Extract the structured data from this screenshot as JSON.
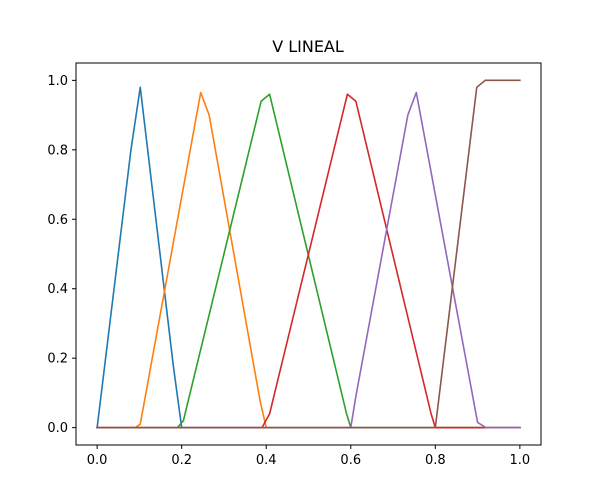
{
  "chart_data": {
    "type": "line",
    "title": "V LINEAL",
    "xlabel": "",
    "ylabel": "",
    "xlim": [
      -0.05,
      1.05
    ],
    "ylim": [
      -0.05,
      1.05
    ],
    "xticks": [
      0.0,
      0.2,
      0.4,
      0.6,
      0.8,
      1.0
    ],
    "xtick_labels": [
      "0.0",
      "0.2",
      "0.4",
      "0.6",
      "0.8",
      "1.0"
    ],
    "yticks": [
      0.0,
      0.2,
      0.4,
      0.6,
      0.8,
      1.0
    ],
    "ytick_labels": [
      "0.0",
      "0.2",
      "0.4",
      "0.6",
      "0.8",
      "1.0"
    ],
    "grid": false,
    "legend": false,
    "series": [
      {
        "color": "#1f77b4",
        "x": [
          0.0,
          0.08,
          0.102,
          0.18,
          0.2,
          1.0
        ],
        "y": [
          0.0,
          0.8,
          0.98,
          0.18,
          0.0,
          0.0
        ]
      },
      {
        "color": "#ff7f0e",
        "x": [
          0.0,
          0.09,
          0.102,
          0.245,
          0.265,
          0.385,
          0.4,
          1.0
        ],
        "y": [
          0.0,
          0.0,
          0.01,
          0.965,
          0.9,
          0.08,
          0.0,
          0.0
        ]
      },
      {
        "color": "#2ca02c",
        "x": [
          0.0,
          0.19,
          0.204,
          0.388,
          0.408,
          0.59,
          0.6,
          1.0
        ],
        "y": [
          0.0,
          0.0,
          0.02,
          0.94,
          0.96,
          0.04,
          0.0,
          0.0
        ]
      },
      {
        "color": "#d62728",
        "x": [
          0.0,
          0.39,
          0.408,
          0.592,
          0.612,
          0.79,
          0.8,
          0.82,
          1.0
        ],
        "y": [
          0.0,
          0.0,
          0.04,
          0.96,
          0.94,
          0.04,
          0.0,
          0.0,
          0.0
        ]
      },
      {
        "color": "#9467bd",
        "x": [
          0.0,
          0.6,
          0.612,
          0.735,
          0.755,
          0.9,
          0.92,
          1.0
        ],
        "y": [
          0.0,
          0.0,
          0.09,
          0.9,
          0.965,
          0.015,
          0.0,
          0.0
        ]
      },
      {
        "color": "#8c564b",
        "x": [
          0.0,
          0.8,
          0.898,
          0.918,
          1.0
        ],
        "y": [
          0.0,
          0.0,
          0.98,
          1.0,
          1.0
        ]
      }
    ]
  }
}
